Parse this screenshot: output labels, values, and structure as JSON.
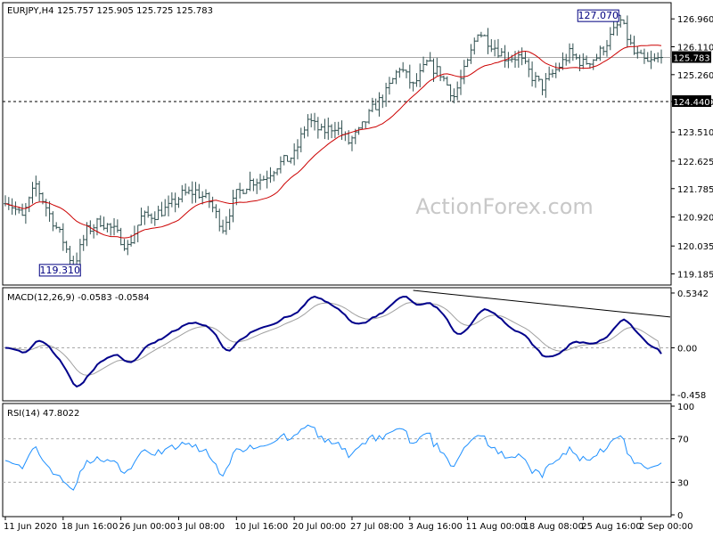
{
  "chart_data": {
    "type": "ohlc",
    "title": "EURJPY,H4",
    "ohlc_header": "125.757 125.905 125.725 125.783",
    "colors": {
      "background": "#ffffff",
      "bars": "#2f4f4f",
      "ma": "#cc0000",
      "macd_line": "#00008b",
      "macd_signal": "#a0a0a0",
      "rsi": "#1e90ff",
      "grid": "#a9a9a9",
      "label_box": "#000080",
      "trendline": "#000000"
    },
    "price_axis": {
      "min": 118.9,
      "max": 127.4,
      "ticks": [
        "126.960",
        "126.110",
        "125.260",
        "124.440",
        "123.510",
        "122.625",
        "121.785",
        "120.920",
        "120.035",
        "119.185"
      ]
    },
    "current_price": {
      "value": 125.783,
      "label": "125.783"
    },
    "support_line": {
      "value": 124.44,
      "label": "124.440"
    },
    "high_label": {
      "value": 127.07,
      "label": "127.070",
      "date_index": 181
    },
    "low_label": {
      "value": 119.31,
      "label": "119.310",
      "date_index": 20
    },
    "watermark": "ActionForex.com",
    "x_axis_labels": [
      "11 Jun 2020",
      "18 Jun 16:00",
      "26 Jun 00:00",
      "3 Jul 08:00",
      "10 Jul 16:00",
      "20 Jul 00:00",
      "27 Jul 08:00",
      "3 Aug 16:00",
      "11 Aug 00:00",
      "18 Aug 08:00",
      "25 Aug 16:00",
      "2 Sep 00:00"
    ],
    "x_axis_label_index": [
      0,
      17,
      34,
      51,
      68,
      85,
      102,
      119,
      136,
      153,
      170,
      187
    ],
    "price_anchors": [
      [
        0,
        121.5
      ],
      [
        5,
        120.9
      ],
      [
        9,
        121.9
      ],
      [
        13,
        121.0
      ],
      [
        17,
        120.2
      ],
      [
        20,
        119.4
      ],
      [
        24,
        120.5
      ],
      [
        28,
        120.8
      ],
      [
        32,
        120.5
      ],
      [
        36,
        120.0
      ],
      [
        40,
        120.9
      ],
      [
        44,
        121.0
      ],
      [
        48,
        121.2
      ],
      [
        52,
        121.6
      ],
      [
        56,
        121.7
      ],
      [
        60,
        121.4
      ],
      [
        64,
        120.6
      ],
      [
        68,
        121.6
      ],
      [
        72,
        122.0
      ],
      [
        76,
        122.1
      ],
      [
        80,
        122.5
      ],
      [
        85,
        122.8
      ],
      [
        89,
        123.9
      ],
      [
        93,
        123.5
      ],
      [
        97,
        123.7
      ],
      [
        101,
        123.2
      ],
      [
        104,
        123.5
      ],
      [
        108,
        124.2
      ],
      [
        112,
        124.7
      ],
      [
        116,
        125.5
      ],
      [
        120,
        124.9
      ],
      [
        124,
        125.6
      ],
      [
        128,
        125.3
      ],
      [
        132,
        124.6
      ],
      [
        136,
        125.6
      ],
      [
        139,
        126.6
      ],
      [
        143,
        126.2
      ],
      [
        147,
        125.8
      ],
      [
        151,
        125.8
      ],
      [
        155,
        125.2
      ],
      [
        158,
        124.9
      ],
      [
        162,
        125.4
      ],
      [
        166,
        125.9
      ],
      [
        170,
        125.6
      ],
      [
        174,
        125.8
      ],
      [
        178,
        126.4
      ],
      [
        181,
        126.9
      ],
      [
        185,
        125.9
      ],
      [
        189,
        125.6
      ],
      [
        193,
        125.78
      ]
    ],
    "macd": {
      "label": "MACD(12,26,9)",
      "line_value": "-0.0583",
      "signal_value": "-0.0584",
      "axis": {
        "min": -0.5,
        "max": 0.56,
        "ticks": [
          "0.5342",
          "0.00",
          "-0.458"
        ]
      },
      "trendline": {
        "start": [
          120,
          0.56
        ],
        "end": [
          193,
          0.3
        ]
      }
    },
    "rsi": {
      "label": "RSI(14)",
      "value": "47.8022",
      "axis": {
        "min": 0,
        "max": 100,
        "ticks": [
          "100",
          "70",
          "30",
          "0"
        ]
      },
      "levels": [
        70,
        30
      ]
    },
    "bar_count": 194
  }
}
